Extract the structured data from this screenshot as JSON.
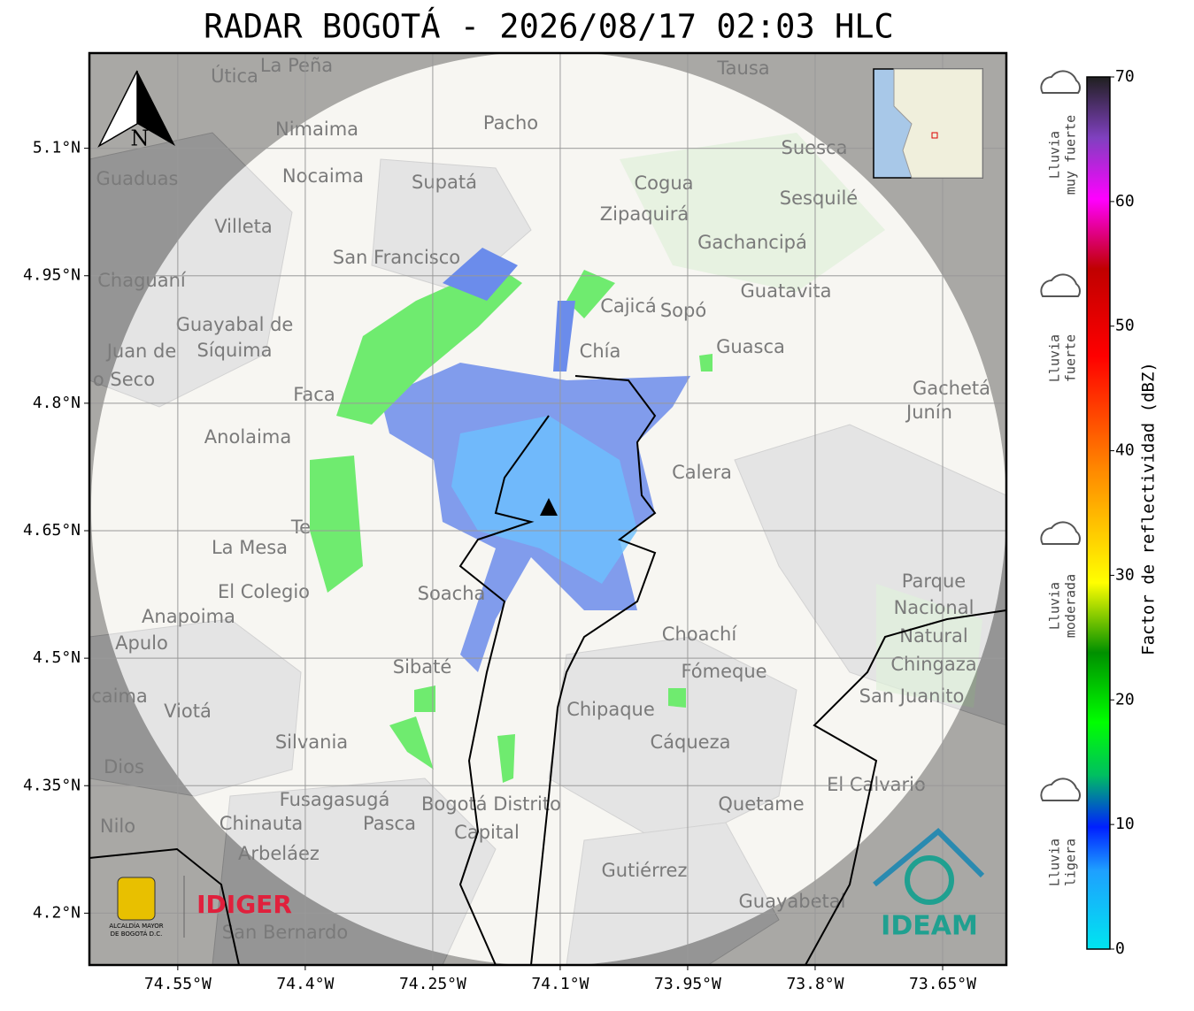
{
  "header": {
    "title": "RADAR BOGOTÁ - 2026/08/17 02:03 HLC"
  },
  "map": {
    "xlim": [
      -74.654,
      -73.575
    ],
    "ylim": [
      4.139,
      5.212
    ],
    "lon_ticks": [
      {
        "value": -74.55,
        "label": "74.55°W"
      },
      {
        "value": -74.4,
        "label": "74.4°W"
      },
      {
        "value": -74.25,
        "label": "74.25°W"
      },
      {
        "value": -74.1,
        "label": "74.1°W"
      },
      {
        "value": -73.95,
        "label": "73.95°W"
      },
      {
        "value": -73.8,
        "label": "73.8°W"
      },
      {
        "value": -73.65,
        "label": "73.65°W"
      }
    ],
    "lat_ticks": [
      {
        "value": 5.1,
        "label": "5.1°N"
      },
      {
        "value": 4.95,
        "label": "4.95°N"
      },
      {
        "value": 4.8,
        "label": "4.8°N"
      },
      {
        "value": 4.65,
        "label": "4.65°N"
      },
      {
        "value": 4.5,
        "label": "4.5°N"
      },
      {
        "value": 4.35,
        "label": "4.35°N"
      },
      {
        "value": 4.2,
        "label": "4.2°N"
      }
    ],
    "north_label": "N",
    "places": [
      "La Peña",
      "Útica",
      "Tausa",
      "Pacho",
      "Nimaima",
      "Suesca",
      "Guaduas",
      "Nocaima",
      "Supatá",
      "Cogua",
      "Sesquilé",
      "Zipaquirá",
      "Villeta",
      "Gachancipá",
      "San Francisco",
      "Chaguaní",
      "Guatavita",
      "Sopó",
      "Cajicá",
      "Guayabal de",
      "Síquima",
      "Chía",
      "Guasca",
      "Juan de",
      "o Seco",
      "Faca",
      "Gachetá",
      "Junín",
      "Anolaima",
      "Calera",
      "Te",
      "La Mesa",
      "El Colegio",
      "Soacha",
      "Parque",
      "Nacional",
      "Natural",
      "Chingaza",
      "Anapoima",
      "Apulo",
      "Choachí",
      "Sibaté",
      "Fómeque",
      "San Juanito",
      "caima",
      "Viotá",
      "Chipaque",
      "Silvania",
      "Cáqueza",
      "Dios",
      "El Calvario",
      "Fusagasugá",
      "Bogotá Distrito",
      "Capital",
      "Quetame",
      "Nilo",
      "Chinauta",
      "Pasca",
      "Arbeláez",
      "Gutiérrez",
      "Guayabetal",
      "San Bernardo"
    ]
  },
  "logos": {
    "alcaldia": [
      "ALCALDÍA MAYOR",
      "DE BOGOTÁ D.C."
    ],
    "idiger": "IDIGER",
    "ideam": "IDEAM"
  },
  "colorbar": {
    "label": "Factor de reflectividad (dBZ)",
    "lim": [
      0,
      70
    ],
    "ticks": [
      0,
      10,
      20,
      30,
      40,
      50,
      60,
      70
    ]
  },
  "rain_legend": [
    [
      "Lluvia",
      "muy fuerte"
    ],
    [
      "Lluvia",
      "fuerte"
    ],
    [
      "Lluvia",
      "moderada"
    ],
    [
      "Lluvia",
      "ligera"
    ]
  ]
}
